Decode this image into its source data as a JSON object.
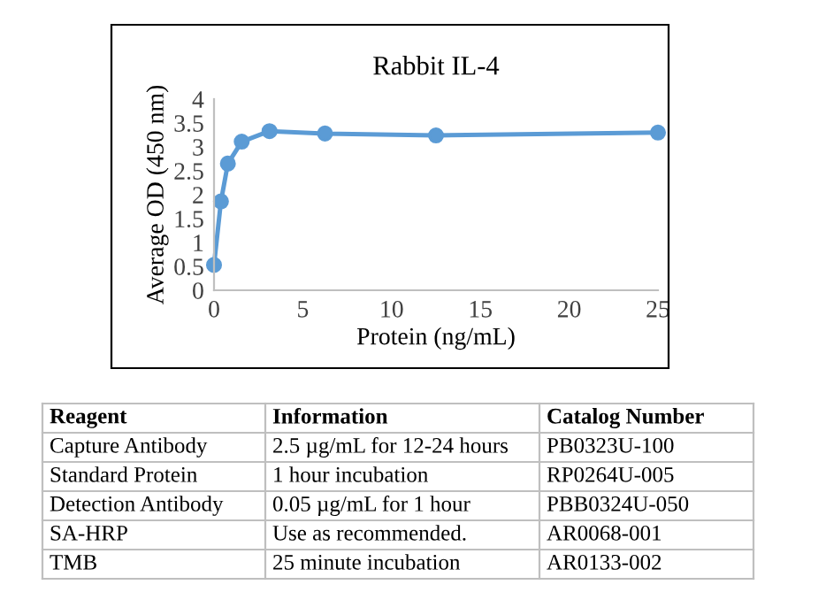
{
  "chart_data": {
    "type": "line",
    "title": "Rabbit IL-4",
    "xlabel": "Protein (ng/mL)",
    "ylabel": "Average OD (450 nm)",
    "x": [
      0,
      0.39,
      0.78,
      1.56,
      3.125,
      6.25,
      12.5,
      25
    ],
    "series": [
      {
        "color": "#5b9bd5",
        "values": [
          0.53,
          1.86,
          2.65,
          3.11,
          3.33,
          3.28,
          3.24,
          3.3
        ]
      }
    ],
    "xlim": [
      0,
      25
    ],
    "xticks": [
      0,
      5,
      10,
      15,
      20,
      25
    ],
    "ylim": [
      0,
      4
    ],
    "yticks": [
      0,
      0.5,
      1,
      1.5,
      2,
      2.5,
      3,
      3.5,
      4
    ],
    "grid": false,
    "legend": false,
    "marker": "circle",
    "line_style": "solid",
    "annotations": [
      "Reagent",
      "Information",
      "Catalog Number",
      "Capture Antibody",
      "2.5 µg/mL for 12-24 hours",
      "PB0323U-100",
      "Standard Protein",
      "1 hour incubation",
      "RP0264U-005",
      "Detection Antibody",
      "0.05 µg/mL for 1 hour",
      "PBB0324U-050",
      "SA-HRP",
      "Use as recommended.",
      "AR0068-001",
      "TMB",
      "25 minute incubation",
      "AR0133-002"
    ]
  }
}
